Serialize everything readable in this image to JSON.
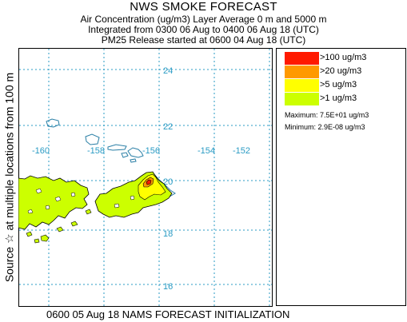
{
  "header": {
    "title": "NWS SMOKE FORECAST",
    "line1": "Air Concentration (ug/m3) Layer Average    0 m and  5000 m",
    "line2": "Integrated from 0300 06 Aug to 0400 06 Aug 18 (UTC)",
    "line3": "PM25 Release started at 0600 04 Aug 18 (UTC)"
  },
  "side_label": "Source ☆   at multiple locations          from   100 m",
  "footer": "0600 05 Aug 18 NAMS FORECAST INITIALIZATION",
  "map": {
    "lat_labels": [
      "24",
      "22",
      "20",
      "18",
      "16"
    ],
    "lon_labels": [
      "-160",
      "-158",
      "-156",
      "-154",
      "-152"
    ],
    "gridline_color": "#2a9bc4",
    "land_outline_color": "#2a7fa6"
  },
  "legend": {
    "items": [
      {
        "label": ">100 ug/m3",
        "color": "#ff1a00"
      },
      {
        "label": ">20 ug/m3",
        "color": "#ff9900"
      },
      {
        "label": ">5 ug/m3",
        "color": "#ffff00"
      },
      {
        "label": ">1 ug/m3",
        "color": "#ccff00"
      }
    ],
    "maximum": "Maximum: 7.5E+01 ug/m3",
    "minimum": "Minimum: 2.9E-08 ug/m3"
  }
}
